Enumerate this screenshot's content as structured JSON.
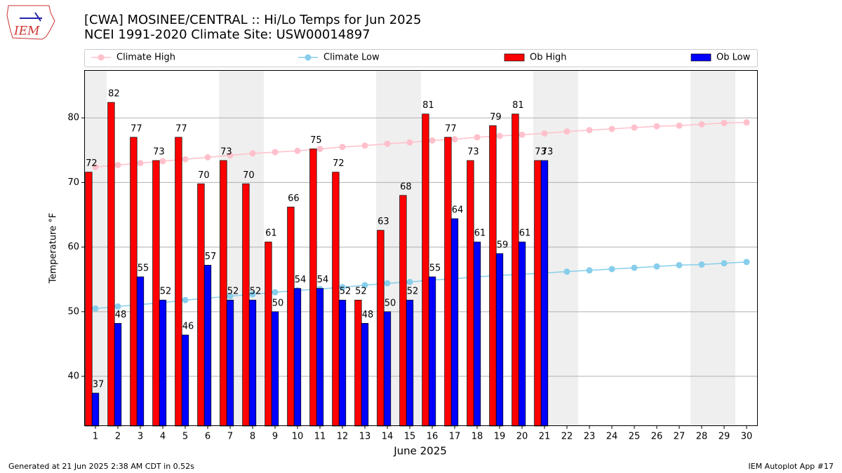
{
  "logo_text": "IEM",
  "footer": {
    "left": "Generated at 21 Jun 2025 2:38 AM CDT in 0.52s",
    "right": "IEM Autoplot App #17"
  },
  "chart_data": {
    "type": "bar",
    "title": "[CWA] MOSINEE/CENTRAL :: Hi/Lo Temps for Jun 2025",
    "subtitle": "NCEI 1991-2020 Climate Site: USW00014897",
    "xlabel": "June 2025",
    "ylabel": "Temperature °F",
    "categories": [
      "1",
      "2",
      "3",
      "4",
      "5",
      "6",
      "7",
      "8",
      "9",
      "10",
      "11",
      "12",
      "13",
      "14",
      "15",
      "16",
      "17",
      "18",
      "19",
      "20",
      "21",
      "22",
      "23",
      "24",
      "25",
      "26",
      "27",
      "28",
      "29",
      "30"
    ],
    "ylim": [
      32.3,
      87.4
    ],
    "yticks": [
      40,
      50,
      60,
      70,
      80
    ],
    "grid": true,
    "series": [
      {
        "name": "Climate High",
        "type": "line",
        "color": "#ffc0cb",
        "values": [
          72.4,
          72.7,
          73.0,
          73.3,
          73.6,
          73.9,
          74.2,
          74.5,
          74.7,
          74.9,
          75.2,
          75.5,
          75.7,
          76.0,
          76.2,
          76.5,
          76.7,
          77.0,
          77.2,
          77.4,
          77.6,
          77.9,
          78.1,
          78.3,
          78.5,
          78.7,
          78.8,
          79.0,
          79.2,
          79.3
        ]
      },
      {
        "name": "Climate Low",
        "type": "line",
        "color": "#87ceeb",
        "values": [
          50.5,
          50.8,
          51.1,
          51.4,
          51.8,
          52.1,
          52.4,
          52.7,
          53.0,
          53.3,
          53.5,
          53.8,
          54.1,
          54.4,
          54.6,
          54.9,
          55.1,
          55.4,
          55.6,
          55.8,
          56.0,
          56.2,
          56.4,
          56.6,
          56.8,
          57.0,
          57.2,
          57.3,
          57.5,
          57.7
        ]
      },
      {
        "name": "Ob High",
        "type": "bar",
        "color": "#ff0000",
        "values": [
          71.6,
          82.4,
          77.0,
          73.4,
          77.0,
          69.8,
          73.4,
          69.8,
          60.8,
          66.2,
          75.2,
          71.6,
          51.8,
          62.6,
          68.0,
          80.6,
          77.0,
          73.4,
          78.8,
          80.6,
          73.4,
          null,
          null,
          null,
          null,
          null,
          null,
          null,
          null,
          null
        ],
        "value_labels": [
          "72",
          "82",
          "77",
          "73",
          "77",
          "70",
          "73",
          "70",
          "61",
          "66",
          "75",
          "72",
          "52",
          "63",
          "68",
          "81",
          "77",
          "73",
          "79",
          "81",
          "73",
          null,
          null,
          null,
          null,
          null,
          null,
          null,
          null,
          null
        ]
      },
      {
        "name": "Ob Low",
        "type": "bar",
        "color": "#0000ff",
        "values": [
          37.4,
          48.2,
          55.4,
          51.8,
          46.4,
          57.2,
          51.8,
          51.8,
          50.0,
          53.6,
          53.6,
          51.8,
          48.2,
          50.0,
          51.8,
          55.4,
          64.4,
          60.8,
          59.0,
          60.8,
          73.4,
          null,
          null,
          null,
          null,
          null,
          null,
          null,
          null,
          null
        ],
        "value_labels": [
          "37",
          "48",
          "55",
          "52",
          "46",
          "57",
          "52",
          "52",
          "50",
          "54",
          "54",
          "52",
          "48",
          "50",
          "52",
          "55",
          "64",
          "61",
          "59",
          "61",
          "73",
          null,
          null,
          null,
          null,
          null,
          null,
          null,
          null,
          null
        ]
      }
    ]
  }
}
